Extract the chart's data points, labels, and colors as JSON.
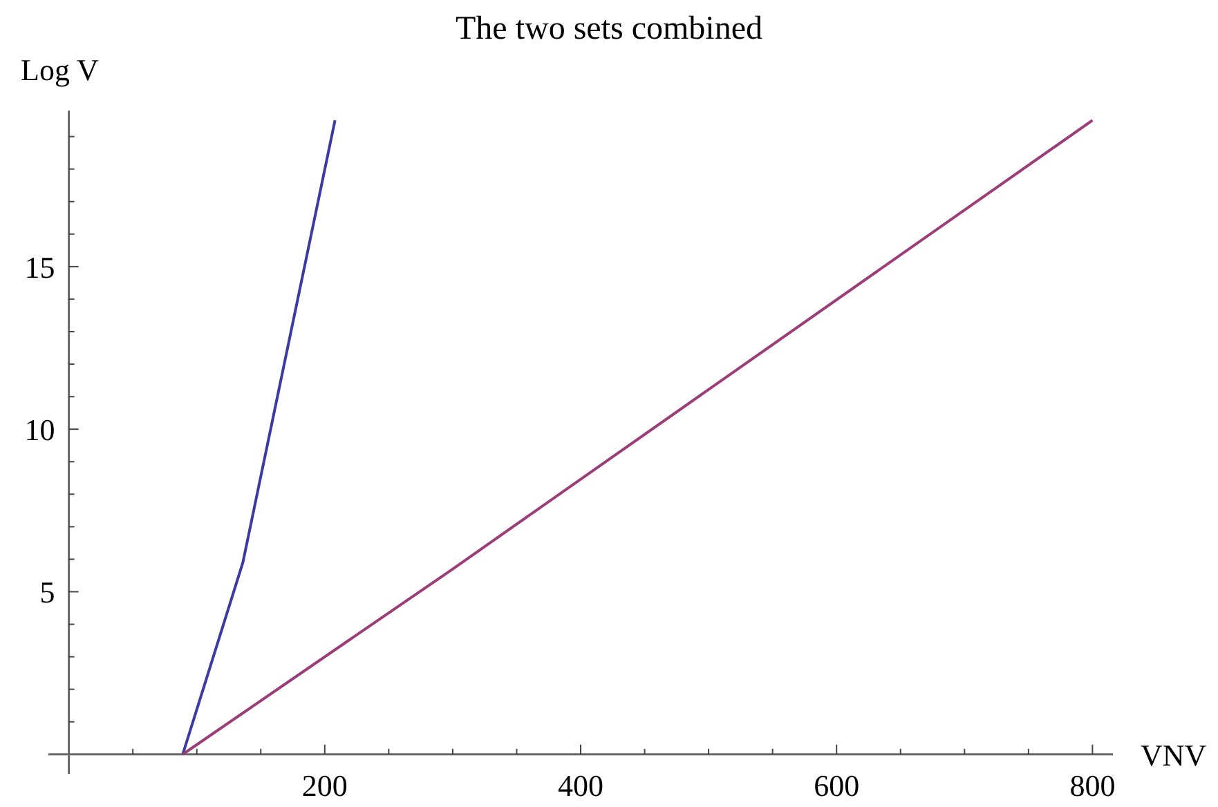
{
  "chart_data": {
    "type": "line",
    "title": "The two sets combined",
    "xlabel": "VNV",
    "ylabel": "Log V",
    "xlim": [
      -16,
      816
    ],
    "ylim": [
      -0.6,
      19.8
    ],
    "xticks": [
      {
        "value": 50,
        "label": null
      },
      {
        "value": 100,
        "label": null
      },
      {
        "value": 150,
        "label": null
      },
      200,
      {
        "value": 250,
        "label": null
      },
      {
        "value": 300,
        "label": null
      },
      {
        "value": 350,
        "label": null
      },
      400,
      {
        "value": 450,
        "label": null
      },
      {
        "value": 500,
        "label": null
      },
      {
        "value": 550,
        "label": null
      },
      600,
      {
        "value": 650,
        "label": null
      },
      {
        "value": 700,
        "label": null
      },
      {
        "value": 750,
        "label": null
      },
      800
    ],
    "yticks": [
      {
        "value": 1,
        "label": null
      },
      {
        "value": 2,
        "label": null
      },
      {
        "value": 3,
        "label": null
      },
      {
        "value": 4,
        "label": null
      },
      5,
      {
        "value": 6,
        "label": null
      },
      {
        "value": 7,
        "label": null
      },
      {
        "value": 8,
        "label": null
      },
      {
        "value": 9,
        "label": null
      },
      10,
      {
        "value": 11,
        "label": null
      },
      {
        "value": 12,
        "label": null
      },
      {
        "value": 13,
        "label": null
      },
      {
        "value": 14,
        "label": null
      },
      15,
      {
        "value": 16,
        "label": null
      },
      {
        "value": 17,
        "label": null
      },
      {
        "value": 18,
        "label": null
      },
      {
        "value": 19,
        "label": null
      }
    ],
    "grid": false,
    "marker": "none",
    "line_style": "solid",
    "series": [
      {
        "color": "#3b3ba3",
        "x": [
          89,
          136,
          208
        ],
        "values": [
          0,
          5.9,
          19.5
        ]
      },
      {
        "color": "#9c3c78",
        "x": [
          89,
          300,
          800
        ],
        "values": [
          0,
          5.7,
          19.5
        ]
      }
    ]
  }
}
